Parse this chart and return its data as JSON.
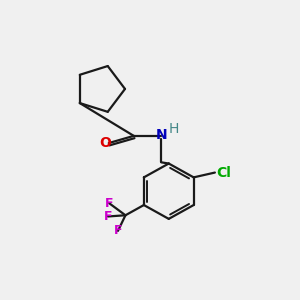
{
  "bg_color": "#f0f0f0",
  "bond_color": "#1a1a1a",
  "O_color": "#dd0000",
  "N_color": "#0000bb",
  "H_color": "#448888",
  "Cl_color": "#00aa00",
  "F_color": "#cc00cc",
  "font_size": 10,
  "small_font": 9,
  "xlim": [
    0.05,
    0.98
  ],
  "ylim": [
    0.02,
    0.98
  ]
}
